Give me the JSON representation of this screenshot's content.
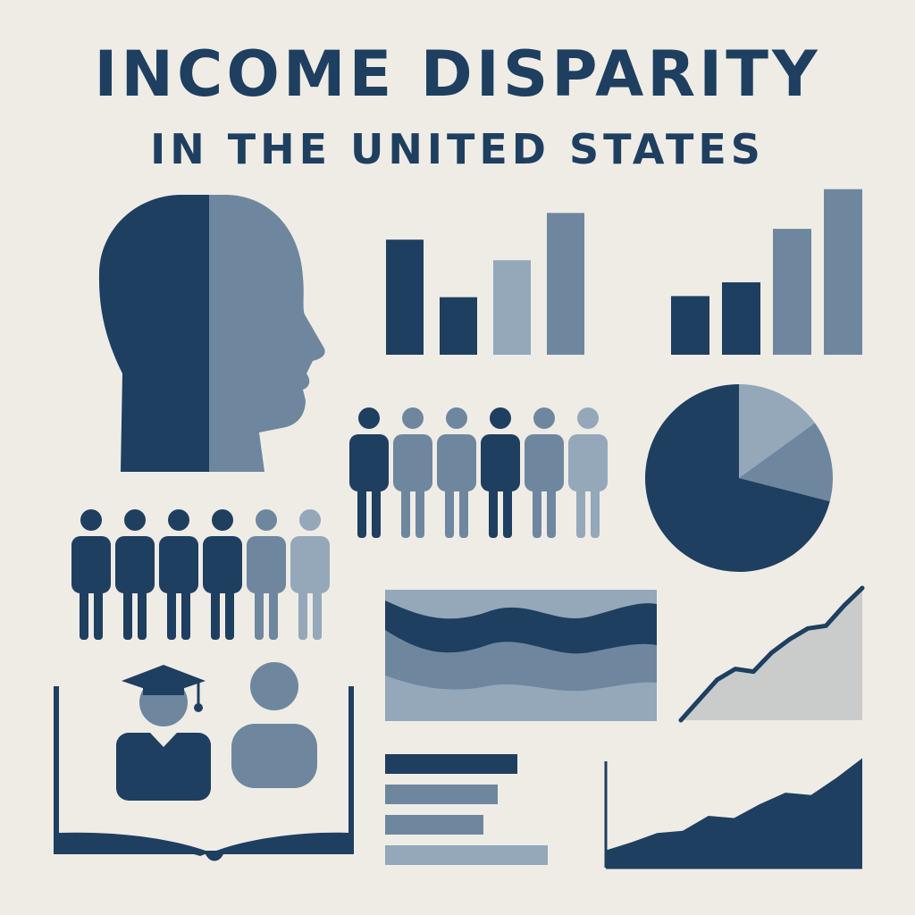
{
  "header": {
    "title": "INCOME DISPARITY",
    "subtitle": "IN THE UNITED STATES"
  },
  "palette": {
    "navy": "#1e3f60",
    "mid": "#4f6d89",
    "slate": "#6e879f",
    "light": "#94a8ba",
    "pale": "#c9cccb",
    "background": "#efece6"
  },
  "chart_data": [
    {
      "type": "bar",
      "values": [
        5.6,
        2.8,
        4.6,
        6.9
      ],
      "colors": [
        "navy",
        "navy",
        "light",
        "slate"
      ]
    },
    {
      "type": "bar",
      "values": [
        3.4,
        4.2,
        7.3,
        9.6
      ],
      "colors": [
        "navy",
        "navy",
        "slate",
        "slate"
      ]
    },
    {
      "type": "pie",
      "values": [
        71,
        15,
        14
      ],
      "colors": [
        "navy",
        "light",
        "slate"
      ]
    },
    {
      "type": "bar",
      "orientation": "horizontal",
      "values": [
        148,
        126,
        110,
        182
      ],
      "colors": [
        "navy",
        "slate",
        "slate",
        "light"
      ]
    },
    {
      "type": "line",
      "x": [
        0,
        1,
        2,
        3,
        4,
        5,
        6,
        7,
        8,
        9,
        10
      ],
      "y": [
        0,
        1.5,
        3.0,
        3.8,
        3.6,
        5.0,
        6.0,
        6.8,
        7.0,
        8.5,
        9.8
      ],
      "color": "navy",
      "fill": "pale"
    },
    {
      "type": "area",
      "x": [
        0,
        1,
        2,
        3,
        4,
        5,
        6,
        7,
        8,
        9,
        10
      ],
      "y": [
        1.5,
        2.2,
        3.0,
        3.2,
        4.5,
        4.3,
        5.5,
        6.5,
        6.3,
        7.8,
        9.5
      ],
      "color": "navy"
    }
  ],
  "figures": {
    "crowd_top": [
      "navy",
      "slate",
      "slate",
      "navy",
      "slate",
      "light"
    ],
    "crowd_left": [
      "navy",
      "navy",
      "navy",
      "navy",
      "slate",
      "light"
    ]
  }
}
